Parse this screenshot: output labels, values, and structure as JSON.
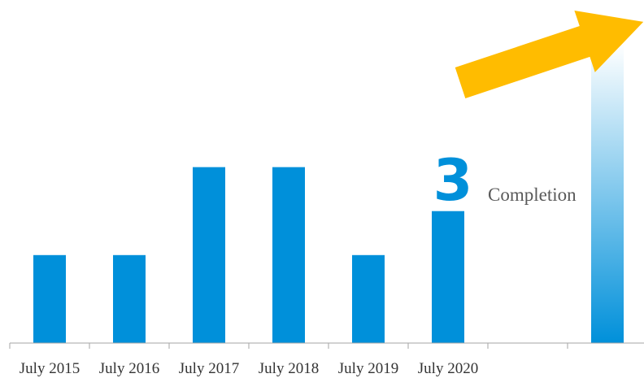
{
  "chart_data": {
    "type": "bar",
    "categories": [
      "July 2015",
      "July 2016",
      "July 2017",
      "July 2018",
      "July 2019",
      "July 2020",
      "",
      ""
    ],
    "values": [
      1,
      1,
      2,
      2,
      1,
      1.5,
      null,
      3.4
    ],
    "ylim": [
      0,
      3.9
    ],
    "grid": false,
    "legend": "none",
    "annotation": {
      "number": "3",
      "text": "Completion"
    },
    "colors": {
      "bar": "#0090DA",
      "gradient_bar_top": "#FFFFFF",
      "gradient_bar_bottom": "#0090DA",
      "arrow": "#FFBC00",
      "axis": "#A6A6A6",
      "tick_label": "#333333",
      "annotation_text": "#595959"
    }
  }
}
